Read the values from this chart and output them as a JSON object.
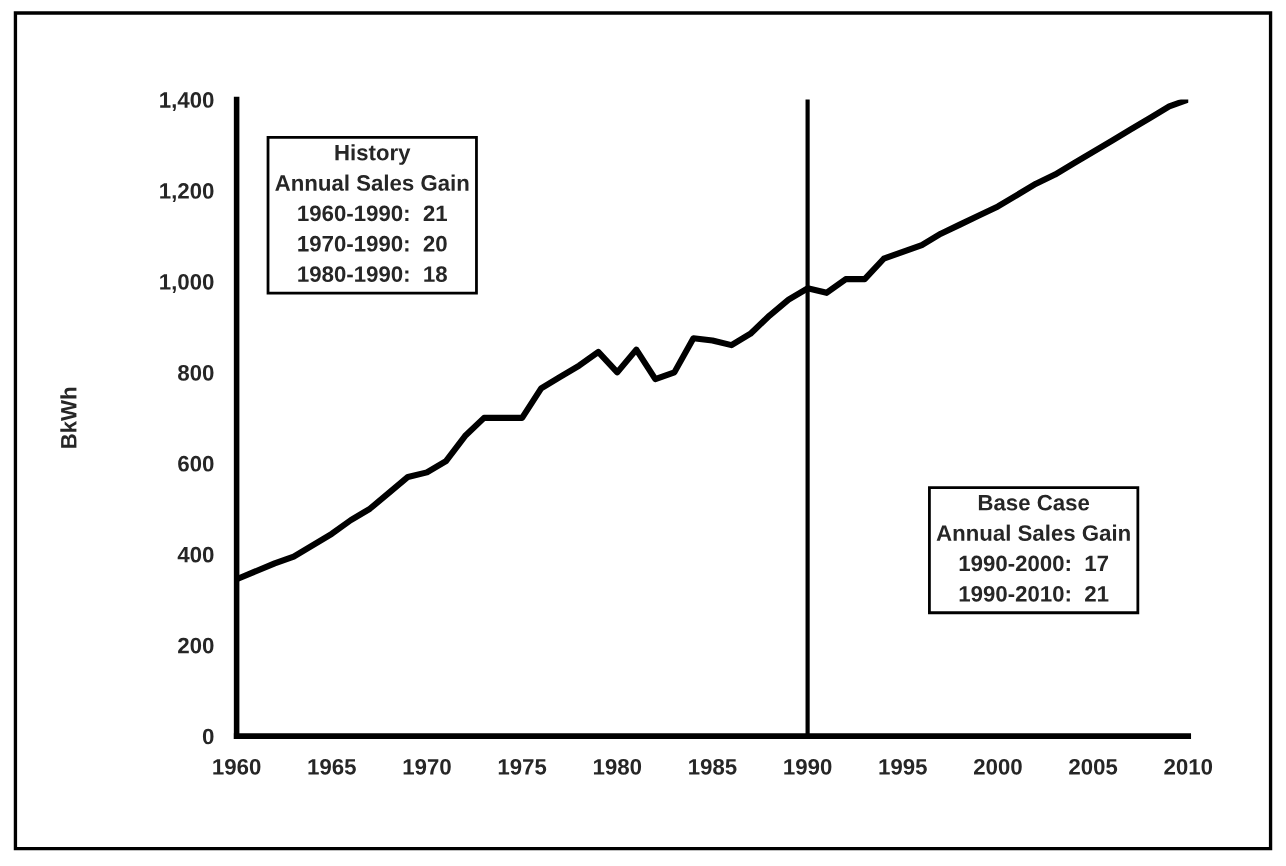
{
  "chart_data": {
    "type": "line",
    "ylabel": "BkWh",
    "x": [
      1960,
      1962,
      1963,
      1965,
      1966,
      1967,
      1968,
      1969,
      1970,
      1971,
      1972,
      1973,
      1974,
      1975,
      1976,
      1977,
      1978,
      1979,
      1980,
      1981,
      1982,
      1983,
      1984,
      1985,
      1986,
      1987,
      1988,
      1989,
      1990,
      1991,
      1992,
      1993,
      1994,
      1995,
      1996,
      1997,
      1998,
      1999,
      2000,
      2001,
      2002,
      2003,
      2004,
      2005,
      2006,
      2007,
      2008,
      2009,
      2010
    ],
    "series": [
      {
        "color": "#000000",
        "values": [
          345,
          380,
          395,
          445,
          475,
          500,
          535,
          570,
          580,
          605,
          660,
          700,
          700,
          700,
          765,
          790,
          815,
          845,
          800,
          850,
          785,
          800,
          875,
          870,
          860,
          885,
          925,
          960,
          985,
          975,
          1005,
          1005,
          1050,
          1065,
          1080,
          1105,
          1125,
          1145,
          1165,
          1190,
          1215,
          1235,
          1260,
          1285,
          1310,
          1335,
          1360,
          1385,
          1400
        ]
      }
    ],
    "xlim": [
      1960,
      2010
    ],
    "xticks": [
      1960,
      1965,
      1970,
      1975,
      1980,
      1985,
      1990,
      1995,
      2000,
      2005,
      2010
    ],
    "ylim": [
      0,
      1400
    ],
    "yticks": [
      0,
      {
        "value": 200,
        "label": "200"
      },
      {
        "value": 400,
        "label": "400"
      },
      {
        "value": 600,
        "label": "600"
      },
      {
        "value": 800,
        "label": "800"
      },
      {
        "value": 1000,
        "label": "1,000"
      },
      {
        "value": 1200,
        "label": "1,200"
      },
      {
        "value": 1400,
        "label": "1,400"
      }
    ],
    "ref_lines": [
      {
        "axis": "x",
        "value": 1990,
        "color": "#000000"
      }
    ],
    "annotations": [
      "History\nAnnual Sales Gain\n1960-1990:  21\n1970-1990:  20\n1980-1990:  18",
      "Base Case\nAnnual Sales Gain\n1990-2000:  17\n1990-2010:  21"
    ],
    "grid": false,
    "legend": false,
    "line_style": "solid",
    "marker": "none"
  }
}
